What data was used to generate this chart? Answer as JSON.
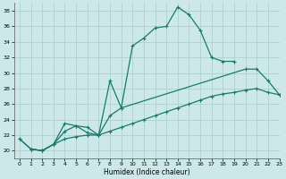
{
  "bg_color": "#cce8e8",
  "grid_color": "#aacccc",
  "line_color": "#1a7a6e",
  "xlabel": "Humidex (Indice chaleur)",
  "xlim": [
    -0.5,
    23
  ],
  "ylim": [
    19,
    39
  ],
  "yticks": [
    20,
    22,
    24,
    26,
    28,
    30,
    32,
    34,
    36,
    38
  ],
  "xticks": [
    0,
    1,
    2,
    3,
    4,
    5,
    6,
    7,
    8,
    9,
    10,
    11,
    12,
    13,
    14,
    15,
    16,
    17,
    18,
    19,
    20,
    21,
    22,
    23
  ],
  "series1_x": [
    0,
    1,
    2,
    3,
    4,
    5,
    6,
    7,
    8,
    9,
    10,
    11,
    12,
    13,
    14,
    15,
    16,
    17,
    18,
    19
  ],
  "series1_y": [
    21.5,
    20.2,
    20.0,
    20.8,
    22.5,
    23.2,
    23.0,
    22.0,
    29.0,
    25.5,
    33.5,
    34.5,
    35.8,
    36.0,
    38.5,
    37.5,
    35.5,
    32.0,
    31.5,
    31.5
  ],
  "series2_x": [
    0,
    1,
    2,
    3,
    4,
    5,
    6,
    7,
    8,
    9,
    20,
    21,
    22,
    23
  ],
  "series2_y": [
    21.5,
    20.2,
    20.0,
    20.8,
    23.5,
    23.2,
    22.3,
    22.0,
    24.5,
    25.5,
    30.5,
    30.5,
    29.0,
    27.2
  ],
  "series3_x": [
    1,
    2,
    3,
    4,
    5,
    6,
    7,
    8,
    9,
    10,
    11,
    12,
    13,
    14,
    15,
    16,
    17,
    18,
    19,
    20,
    21,
    22,
    23
  ],
  "series3_y": [
    20.2,
    20.0,
    20.8,
    21.5,
    21.8,
    22.0,
    22.0,
    22.5,
    23.0,
    23.5,
    24.0,
    24.5,
    25.0,
    25.5,
    26.0,
    26.5,
    27.0,
    27.3,
    27.5,
    27.8,
    28.0,
    27.5,
    27.2
  ]
}
